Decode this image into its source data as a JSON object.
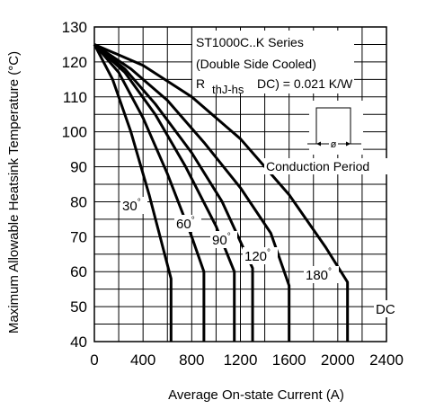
{
  "chart_data": {
    "type": "line",
    "xlabel": "Average On-state Current (A)",
    "ylabel": "Maximum Allowable Heatsink Temperature (°C)",
    "xlim": [
      0,
      2400
    ],
    "ylim": [
      40,
      130
    ],
    "x_ticks": [
      "0",
      "400",
      "800",
      "1200",
      "1600",
      "2000",
      "2400"
    ],
    "y_ticks": [
      "40",
      "50",
      "60",
      "70",
      "80",
      "90",
      "100",
      "110",
      "120",
      "130"
    ],
    "grid": true,
    "annotations": {
      "series_name": "ST1000C..K Series",
      "cooling": "(Double Side Cooled)",
      "r_prefix": "R",
      "r_subscript": "thJ-hs",
      "r_value": "DC) = 0.021 K/W",
      "conduction": "Conduction Period",
      "phi": "ø"
    },
    "series": [
      {
        "name": "30°",
        "label_text": "30",
        "degree": "°",
        "points": [
          [
            0,
            125
          ],
          [
            150,
            115
          ],
          [
            300,
            100
          ],
          [
            450,
            82
          ],
          [
            600,
            62
          ],
          [
            630,
            58
          ],
          [
            630,
            40
          ]
        ]
      },
      {
        "name": "60°",
        "label_text": "60",
        "degree": "°",
        "points": [
          [
            0,
            125
          ],
          [
            200,
            117
          ],
          [
            400,
            104
          ],
          [
            600,
            88
          ],
          [
            800,
            70
          ],
          [
            900,
            60
          ],
          [
            900,
            58
          ],
          [
            900,
            40
          ]
        ]
      },
      {
        "name": "90°",
        "label_text": "90",
        "degree": "°",
        "points": [
          [
            0,
            125
          ],
          [
            250,
            117
          ],
          [
            500,
            105
          ],
          [
            750,
            90
          ],
          [
            1000,
            73
          ],
          [
            1150,
            60
          ],
          [
            1150,
            58
          ],
          [
            1150,
            40
          ]
        ]
      },
      {
        "name": "120°",
        "label_text": "120",
        "degree": "°",
        "points": [
          [
            0,
            125
          ],
          [
            250,
            118
          ],
          [
            500,
            108
          ],
          [
            800,
            94
          ],
          [
            1050,
            80
          ],
          [
            1300,
            61
          ],
          [
            1300,
            58
          ],
          [
            1300,
            40
          ]
        ]
      },
      {
        "name": "180°",
        "label_text": "180",
        "degree": "°",
        "points": [
          [
            0,
            125
          ],
          [
            300,
            118
          ],
          [
            600,
            109
          ],
          [
            900,
            97
          ],
          [
            1200,
            84
          ],
          [
            1450,
            71
          ],
          [
            1600,
            56
          ],
          [
            1600,
            53
          ],
          [
            1600,
            40
          ]
        ]
      },
      {
        "name": "DC",
        "label_text": "DC",
        "degree": "",
        "points": [
          [
            0,
            125
          ],
          [
            400,
            119
          ],
          [
            800,
            110
          ],
          [
            1200,
            98
          ],
          [
            1600,
            82
          ],
          [
            1900,
            67
          ],
          [
            2080,
            57
          ],
          [
            2080,
            40
          ]
        ]
      }
    ]
  }
}
